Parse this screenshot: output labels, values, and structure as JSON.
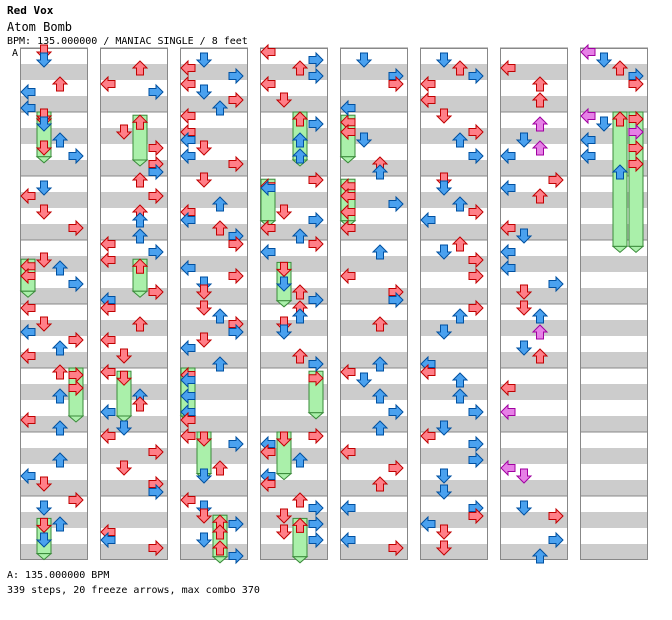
{
  "song": {
    "artist": "Red Vox",
    "title": "Atom Bomb",
    "meta": "BPM: 135.000000 / MANIAC SINGLE / 8 feet",
    "section_marker": "A"
  },
  "footer": {
    "bpm_line": "A: 135.000000 BPM",
    "stats_line": "339 steps, 20 freeze arrows, max combo 370"
  },
  "chart_data": {
    "type": "step-chart",
    "columns": 8,
    "measures_per_column": 8,
    "lanes": [
      "left",
      "down",
      "up",
      "right"
    ],
    "colors": {
      "quarter": "#ff7f88",
      "eighth": "#4aa1ef",
      "sixteenth": "#e680e6",
      "freeze": "#aaf0aa",
      "stripe": "#cccccc"
    },
    "freeze_arrows": [
      {
        "col": 0,
        "lane": 1,
        "start": 1.0,
        "end": 1.7
      },
      {
        "col": 0,
        "lane": 0,
        "start": 3.3,
        "end": 3.8
      },
      {
        "col": 0,
        "lane": 3,
        "start": 5.0,
        "end": 5.75
      },
      {
        "col": 0,
        "lane": 1,
        "start": 7.35,
        "end": 7.9
      },
      {
        "col": 1,
        "lane": 2,
        "start": 1.05,
        "end": 1.75
      },
      {
        "col": 1,
        "lane": 2,
        "start": 3.3,
        "end": 3.8
      },
      {
        "col": 1,
        "lane": 1,
        "start": 5.05,
        "end": 5.75
      },
      {
        "col": 2,
        "lane": 0,
        "start": 5.0,
        "end": 5.75
      },
      {
        "col": 2,
        "lane": 1,
        "start": 6.0,
        "end": 6.65
      },
      {
        "col": 2,
        "lane": 2,
        "start": 7.3,
        "end": 7.95
      },
      {
        "col": 3,
        "lane": 0,
        "start": 2.05,
        "end": 2.7
      },
      {
        "col": 3,
        "lane": 1,
        "start": 3.35,
        "end": 3.95
      },
      {
        "col": 3,
        "lane": 2,
        "start": 1.0,
        "end": 1.75
      },
      {
        "col": 3,
        "lane": 3,
        "start": 5.05,
        "end": 5.7
      },
      {
        "col": 3,
        "lane": 1,
        "start": 6.0,
        "end": 6.65
      },
      {
        "col": 3,
        "lane": 2,
        "start": 7.35,
        "end": 7.95
      },
      {
        "col": 4,
        "lane": 0,
        "start": 1.05,
        "end": 1.7
      },
      {
        "col": 4,
        "lane": 0,
        "start": 2.05,
        "end": 2.7
      },
      {
        "col": 7,
        "lane": 2,
        "start": 1.0,
        "end": 3.1
      },
      {
        "col": 7,
        "lane": 3,
        "start": 1.0,
        "end": 3.1
      }
    ]
  }
}
